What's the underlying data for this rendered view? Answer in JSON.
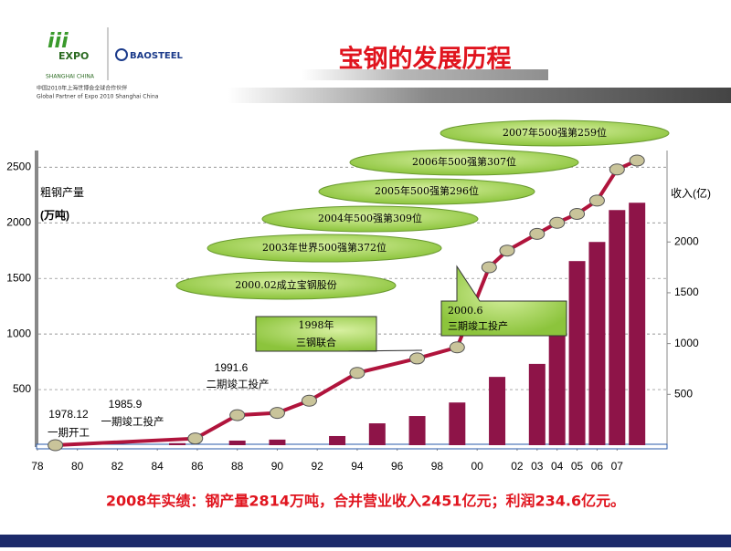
{
  "header": {
    "expo_logo": "EXPO",
    "expo_sub": "SHANGHAI CHINA",
    "brand": "BAOSTEEL",
    "partner_cn": "中国2010年上海世博会全球合作伙伴",
    "partner_en": "Global Partner of Expo 2010 Shanghai China"
  },
  "chart_data": {
    "type": "combo",
    "title": "宝钢的发展历程",
    "y_label": [
      "粗钢产量",
      "(万吨)"
    ],
    "y2_label": "收入(亿)",
    "xlim": [
      1977.5,
      2009.5
    ],
    "xticks": [
      {
        "value": 1978,
        "label": "78"
      },
      {
        "value": 1980,
        "label": "80"
      },
      {
        "value": 1982,
        "label": "82"
      },
      {
        "value": 1984,
        "label": "84"
      },
      {
        "value": 1986,
        "label": "86"
      },
      {
        "value": 1988,
        "label": "88"
      },
      {
        "value": 1990,
        "label": "90"
      },
      {
        "value": 1992,
        "label": "92"
      },
      {
        "value": 1994,
        "label": "94"
      },
      {
        "value": 1996,
        "label": "96"
      },
      {
        "value": 1998,
        "label": "98"
      },
      {
        "value": 2000,
        "label": "00"
      },
      {
        "value": 2002,
        "label": "02"
      },
      {
        "value": 2003,
        "label": "03"
      },
      {
        "value": 2004,
        "label": "04"
      },
      {
        "value": 2005,
        "label": "05"
      },
      {
        "value": 2006,
        "label": "06"
      },
      {
        "value": 2007,
        "label": "07"
      }
    ],
    "ylim": [
      0,
      2650
    ],
    "yticks": [
      500,
      1000,
      1500,
      2000,
      2500
    ],
    "y2lim": [
      0,
      2900
    ],
    "y2ticks": [
      500,
      1000,
      1500,
      2000
    ],
    "grid": true,
    "series": [
      {
        "type": "bar",
        "axis": "y2",
        "color": "#8e1448",
        "x": [
          1985,
          1988,
          1990,
          1993,
          1995,
          1997,
          1999,
          2001,
          2003,
          2004,
          2005,
          2006,
          2007,
          2008
        ],
        "values": [
          20,
          45,
          55,
          90,
          215,
          287,
          420,
          672,
          800,
          1076,
          1812,
          2000,
          2314,
          2386
        ]
      },
      {
        "type": "line",
        "color": "#b0143c",
        "marker_color": "#c9c49a",
        "x": [
          1978.9,
          1985.9,
          1988,
          1990,
          1991.6,
          1994,
          1997,
          1999,
          2000.6,
          2001.5,
          2003,
          2004,
          2005,
          2006,
          2007,
          2008
        ],
        "values": [
          0,
          60,
          270,
          290,
          400,
          650,
          780,
          880,
          1600,
          1750,
          1900,
          2000,
          2080,
          2200,
          2480,
          2560
        ]
      }
    ],
    "annotations": [
      "2007年500强第259位",
      "2006年500强第307位",
      "2005年500强第296位",
      "2004年500强第309位",
      "2003年世界500强第372位",
      "2000.02成立宝钢股份"
    ],
    "callouts": [
      [
        "1998年",
        "三钢联合"
      ],
      [
        "2000.6",
        "三期竣工投产"
      ]
    ],
    "milestones": [
      [
        "1978.12",
        "一期开工"
      ],
      [
        "1985.9",
        "一期竣工投产"
      ],
      [
        "1991.6",
        "二期竣工投产"
      ]
    ],
    "footer": "2008年实绩：钢产量2814万吨，合并营业收入2451亿元；利润234.6亿元。"
  }
}
